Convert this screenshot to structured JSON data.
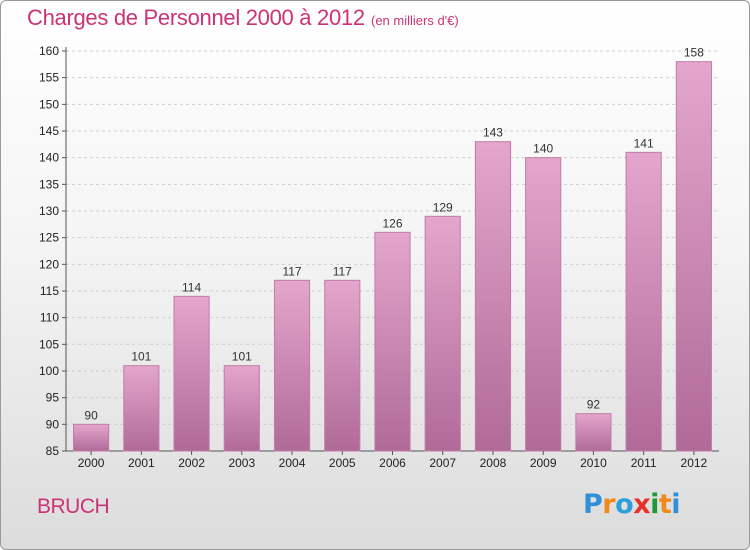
{
  "header": {
    "title": "Charges de Personnel 2000 à 2012",
    "subtitle": "(en milliers d'€)"
  },
  "footer": {
    "commune": "BRUCH",
    "logo_letters": [
      {
        "char": "P",
        "color": "#2f8fd8"
      },
      {
        "char": "r",
        "color": "#f08a1c"
      },
      {
        "char": "o",
        "color": "#2f9fd8"
      },
      {
        "char": "x",
        "color": "#e8302a"
      },
      {
        "char": "i",
        "color": "#1f9a3a"
      },
      {
        "char": "t",
        "color": "#f08a1c"
      },
      {
        "char": "i",
        "color": "#2f8fd8"
      }
    ]
  },
  "colors": {
    "bar_top": "#e4a6cc",
    "bar_bottom": "#b06a98",
    "bar_edge": "#c27ba8",
    "axis": "#555555",
    "grid": "#cfcfcf",
    "accent": "#cc3377"
  },
  "chart_data": {
    "type": "bar",
    "title": "Charges de Personnel 2000 à 2012",
    "subtitle": "(en milliers d'€)",
    "xlabel": "",
    "ylabel": "",
    "categories": [
      "2000",
      "2001",
      "2002",
      "2003",
      "2004",
      "2005",
      "2006",
      "2007",
      "2008",
      "2009",
      "2010",
      "2011",
      "2012"
    ],
    "values": [
      90,
      101,
      114,
      101,
      117,
      117,
      126,
      129,
      143,
      140,
      92,
      141,
      158
    ],
    "ylim": [
      85,
      160
    ],
    "yticks": [
      85,
      90,
      95,
      100,
      105,
      110,
      115,
      120,
      125,
      130,
      135,
      140,
      145,
      150,
      155,
      160
    ],
    "grid": true,
    "legend": "none"
  }
}
